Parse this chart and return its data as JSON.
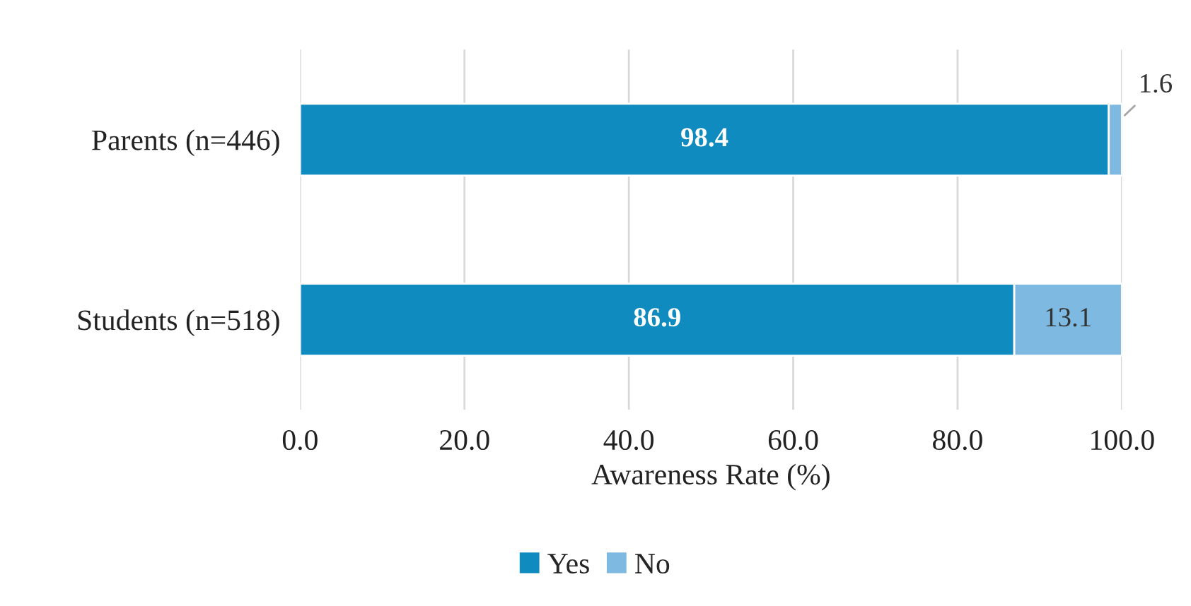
{
  "chart_data": {
    "type": "bar",
    "orientation": "horizontal",
    "stacked": true,
    "categories": [
      "Parents (n=446)",
      "Students (n=518)"
    ],
    "series": [
      {
        "name": "Yes",
        "color": "#0f8bbf",
        "values": [
          98.4,
          86.9
        ]
      },
      {
        "name": "No",
        "color": "#7db9e1",
        "values": [
          1.6,
          13.1
        ]
      }
    ],
    "xlabel": "Awareness Rate (%)",
    "xlim": [
      0,
      100
    ],
    "xticks": [
      {
        "value": 0,
        "label": "0.0"
      },
      {
        "value": 20,
        "label": "20.0"
      },
      {
        "value": 40,
        "label": "40.0"
      },
      {
        "value": 60,
        "label": "60.0"
      },
      {
        "value": 80,
        "label": "80.0"
      },
      {
        "value": 100,
        "label": "100.0"
      }
    ],
    "grid": "x",
    "legend": "bottom",
    "data_labels": true
  }
}
